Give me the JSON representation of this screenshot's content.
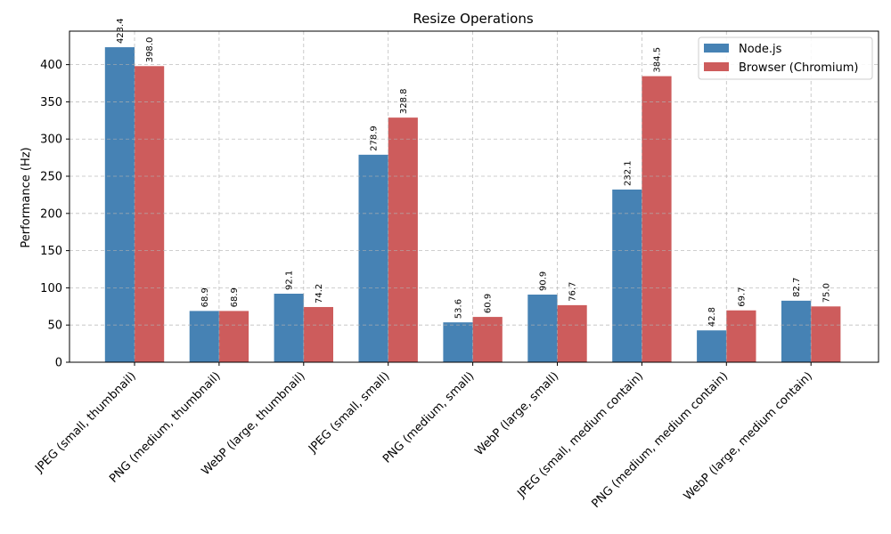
{
  "chart_data": {
    "type": "bar",
    "title": "Resize Operations",
    "xlabel": "",
    "ylabel": "Performance (Hz)",
    "ylim": [
      0,
      445
    ],
    "yticks": [
      0,
      50,
      100,
      150,
      200,
      250,
      300,
      350,
      400
    ],
    "grid": true,
    "legend_position": "top-right",
    "categories": [
      "JPEG (small, thumbnail)",
      "PNG (medium, thumbnail)",
      "WebP (large, thumbnail)",
      "JPEG (small, small)",
      "PNG (medium, small)",
      "WebP (large, small)",
      "JPEG (small, medium contain)",
      "PNG (medium, medium contain)",
      "WebP (large, medium contain)"
    ],
    "series": [
      {
        "name": "Node.js",
        "color": "#4682b4",
        "values": [
          423.4,
          68.9,
          92.1,
          278.9,
          53.6,
          90.9,
          232.1,
          42.8,
          82.7
        ],
        "labels": [
          "423.4",
          "68.9",
          "92.1",
          "278.9",
          "53.6",
          "90.9",
          "232.1",
          "42.8",
          "82.7"
        ]
      },
      {
        "name": "Browser (Chromium)",
        "color": "#cd5c5c",
        "values": [
          398.0,
          68.9,
          74.2,
          328.8,
          60.9,
          76.7,
          384.5,
          69.7,
          75.0
        ],
        "labels": [
          "398.0",
          "68.9",
          "74.2",
          "328.8",
          "60.9",
          "76.7",
          "384.5",
          "69.7",
          "75.0"
        ]
      }
    ]
  }
}
